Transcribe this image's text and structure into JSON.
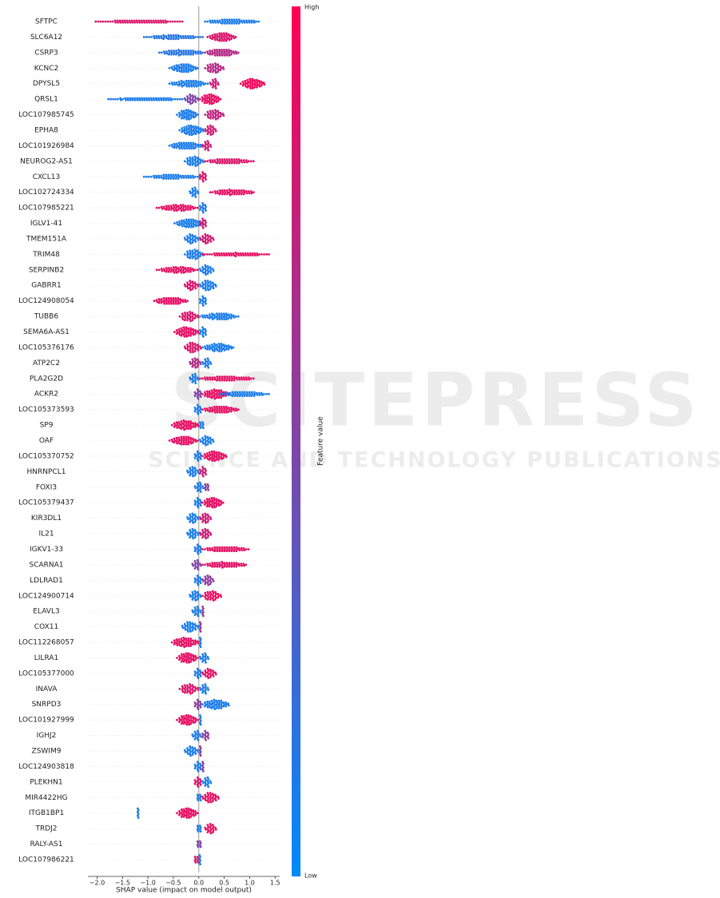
{
  "chart_data": {
    "type": "beeswarm",
    "xlabel": "SHAP value (impact on model output)",
    "xlim": [
      -2.18,
      1.59
    ],
    "xticks": [
      {
        "value": -2,
        "label": "−2.0"
      },
      {
        "value": -1.5,
        "label": "−1.5"
      },
      {
        "value": -1,
        "label": "−1.0"
      },
      {
        "value": -0.5,
        "label": "−0.5"
      },
      {
        "value": 0,
        "label": "0.0"
      },
      {
        "value": 0.5,
        "label": "0.5"
      },
      {
        "value": 1,
        "label": "1.0"
      },
      {
        "value": 1.5,
        "label": "1.5"
      }
    ],
    "colorbar": {
      "label": "Feature value",
      "high": "High",
      "low": "Low",
      "low_color": "#008afb",
      "high_color": "#ff0052"
    },
    "watermark": {
      "title": "SCITEPRESS",
      "subtitle": "SCIENCE AND TECHNOLOGY PUBLICATIONS"
    },
    "features": [
      {
        "name": "SFTPC",
        "clusters": [
          [
            -2.05,
            -0.3,
            0.85
          ],
          [
            0.1,
            1.2,
            0.1
          ]
        ]
      },
      {
        "name": "SLC6A12",
        "clusters": [
          [
            -1.1,
            0.1,
            0.15
          ],
          [
            0.15,
            0.75,
            0.85
          ]
        ]
      },
      {
        "name": "CSRP3",
        "clusters": [
          [
            -0.8,
            0.1,
            0.15
          ],
          [
            0.1,
            0.8,
            0.7
          ]
        ]
      },
      {
        "name": "KCNC2",
        "clusters": [
          [
            -0.6,
            0.0,
            0.1
          ],
          [
            0.1,
            0.5,
            0.7
          ]
        ]
      },
      {
        "name": "DPYSL5",
        "clusters": [
          [
            -0.6,
            0.2,
            0.1
          ],
          [
            0.2,
            0.4,
            0.8
          ],
          [
            0.8,
            1.3,
            0.95
          ]
        ]
      },
      {
        "name": "QRSL1",
        "clusters": [
          [
            -1.8,
            -0.3,
            0.1
          ],
          [
            -0.3,
            0.0,
            0.5
          ],
          [
            0.0,
            0.45,
            0.9
          ]
        ]
      },
      {
        "name": "LOC107985745",
        "clusters": [
          [
            -0.45,
            0.0,
            0.1
          ],
          [
            0.1,
            0.5,
            0.75
          ]
        ]
      },
      {
        "name": "EPHA8",
        "clusters": [
          [
            -0.4,
            0.1,
            0.1
          ],
          [
            0.1,
            0.35,
            0.8
          ]
        ]
      },
      {
        "name": "LOC101926984",
        "clusters": [
          [
            -0.6,
            0.1,
            0.1
          ],
          [
            0.05,
            0.25,
            0.8
          ]
        ]
      },
      {
        "name": "NEUROG2-AS1",
        "clusters": [
          [
            -0.3,
            0.1,
            0.1
          ],
          [
            0.1,
            1.1,
            0.85
          ]
        ]
      },
      {
        "name": "CXCL13",
        "clusters": [
          [
            -1.1,
            0.05,
            0.1
          ],
          [
            0.0,
            0.15,
            0.85
          ]
        ]
      },
      {
        "name": "LOC102724334",
        "clusters": [
          [
            -0.2,
            0.0,
            0.1
          ],
          [
            0.2,
            1.1,
            0.9
          ]
        ]
      },
      {
        "name": "LOC107985221",
        "clusters": [
          [
            -0.85,
            0.0,
            0.9
          ],
          [
            0.0,
            0.15,
            0.1
          ]
        ]
      },
      {
        "name": "IGLV1-41",
        "clusters": [
          [
            -0.5,
            0.1,
            0.1
          ],
          [
            0.0,
            0.15,
            0.8
          ]
        ]
      },
      {
        "name": "TMEM151A",
        "clusters": [
          [
            -0.3,
            0.0,
            0.1
          ],
          [
            0.0,
            0.3,
            0.8
          ]
        ]
      },
      {
        "name": "TRIM48",
        "clusters": [
          [
            -0.3,
            0.1,
            0.1
          ],
          [
            0.05,
            1.4,
            0.9
          ]
        ]
      },
      {
        "name": "SERPINB2",
        "clusters": [
          [
            -0.85,
            0.0,
            0.9
          ],
          [
            0.0,
            0.3,
            0.1
          ]
        ]
      },
      {
        "name": "GABRR1",
        "clusters": [
          [
            -0.3,
            0.0,
            0.85
          ],
          [
            0.0,
            0.35,
            0.1
          ]
        ]
      },
      {
        "name": "LOC124908054",
        "clusters": [
          [
            -0.9,
            -0.2,
            0.9
          ],
          [
            0.0,
            0.15,
            0.1
          ]
        ]
      },
      {
        "name": "TUBB6",
        "clusters": [
          [
            -0.4,
            0.0,
            0.85
          ],
          [
            0.0,
            0.8,
            0.1
          ]
        ]
      },
      {
        "name": "SEMA6A-AS1",
        "clusters": [
          [
            -0.5,
            0.0,
            0.9
          ],
          [
            0.0,
            0.15,
            0.1
          ]
        ]
      },
      {
        "name": "LOC105376176",
        "clusters": [
          [
            -0.3,
            0.05,
            0.85
          ],
          [
            0.05,
            0.7,
            0.1
          ]
        ]
      },
      {
        "name": "ATP2C2",
        "clusters": [
          [
            -0.2,
            0.05,
            0.7
          ],
          [
            0.05,
            0.25,
            0.1
          ]
        ]
      },
      {
        "name": "PLA2G2D",
        "clusters": [
          [
            -0.2,
            0.0,
            0.1
          ],
          [
            0.0,
            1.1,
            0.9
          ]
        ]
      },
      {
        "name": "ACKR2",
        "clusters": [
          [
            -0.1,
            0.05,
            0.5
          ],
          [
            0.05,
            0.6,
            0.9
          ],
          [
            0.4,
            1.4,
            0.1
          ]
        ]
      },
      {
        "name": "LOC105373593",
        "clusters": [
          [
            -0.1,
            0.05,
            0.1
          ],
          [
            0.05,
            0.8,
            0.9
          ]
        ]
      },
      {
        "name": "SP9",
        "clusters": [
          [
            -0.55,
            0.0,
            0.9
          ],
          [
            0.0,
            0.1,
            0.1
          ]
        ]
      },
      {
        "name": "OAF",
        "clusters": [
          [
            -0.6,
            0.0,
            0.9
          ],
          [
            0.0,
            0.3,
            0.1
          ]
        ]
      },
      {
        "name": "LOC105370752",
        "clusters": [
          [
            -0.1,
            0.05,
            0.1
          ],
          [
            0.05,
            0.55,
            0.9
          ]
        ]
      },
      {
        "name": "HNRNPCL1",
        "clusters": [
          [
            -0.25,
            0.0,
            0.1
          ],
          [
            0.0,
            0.15,
            0.8
          ]
        ]
      },
      {
        "name": "FOXI3",
        "clusters": [
          [
            -0.1,
            0.1,
            0.1
          ],
          [
            0.1,
            0.2,
            0.55
          ]
        ]
      },
      {
        "name": "LOC105379437",
        "clusters": [
          [
            -0.1,
            0.05,
            0.1
          ],
          [
            0.05,
            0.5,
            0.9
          ]
        ]
      },
      {
        "name": "KIR3DL1",
        "clusters": [
          [
            -0.25,
            0.0,
            0.1
          ],
          [
            0.0,
            0.25,
            0.8
          ]
        ]
      },
      {
        "name": "IL21",
        "clusters": [
          [
            -0.25,
            0.0,
            0.1
          ],
          [
            0.0,
            0.25,
            0.8
          ]
        ]
      },
      {
        "name": "IGKV1-33",
        "clusters": [
          [
            -0.1,
            0.05,
            0.1
          ],
          [
            0.05,
            1.0,
            0.9
          ]
        ]
      },
      {
        "name": "SCARNA1",
        "clusters": [
          [
            -0.15,
            0.05,
            0.5
          ],
          [
            0.05,
            0.95,
            0.9
          ]
        ]
      },
      {
        "name": "LDLRAD1",
        "clusters": [
          [
            -0.1,
            0.05,
            0.1
          ],
          [
            0.05,
            0.3,
            0.55
          ]
        ]
      },
      {
        "name": "LOC124900714",
        "clusters": [
          [
            -0.2,
            0.05,
            0.1
          ],
          [
            0.05,
            0.45,
            0.9
          ]
        ]
      },
      {
        "name": "ELAVL3",
        "clusters": [
          [
            -0.15,
            0.05,
            0.1
          ],
          [
            0.05,
            0.1,
            0.55
          ]
        ]
      },
      {
        "name": "COX11",
        "clusters": [
          [
            -0.35,
            0.0,
            0.1
          ],
          [
            0.0,
            0.05,
            0.55
          ]
        ]
      },
      {
        "name": "LOC112268057",
        "clusters": [
          [
            -0.55,
            0.0,
            0.9
          ],
          [
            0.0,
            0.05,
            0.1
          ]
        ]
      },
      {
        "name": "LILRA1",
        "clusters": [
          [
            -0.45,
            0.0,
            0.9
          ],
          [
            0.0,
            0.2,
            0.1
          ]
        ]
      },
      {
        "name": "LOC105377000",
        "clusters": [
          [
            -0.1,
            0.05,
            0.1
          ],
          [
            0.05,
            0.35,
            0.9
          ]
        ]
      },
      {
        "name": "INAVA",
        "clusters": [
          [
            -0.4,
            0.0,
            0.85
          ],
          [
            0.0,
            0.2,
            0.1
          ]
        ]
      },
      {
        "name": "SNRPD3",
        "clusters": [
          [
            -0.1,
            0.05,
            0.55
          ],
          [
            0.05,
            0.6,
            0.1
          ]
        ]
      },
      {
        "name": "LOC101927999",
        "clusters": [
          [
            -0.45,
            0.0,
            0.9
          ],
          [
            0.0,
            0.05,
            0.1
          ]
        ]
      },
      {
        "name": "IGHJ2",
        "clusters": [
          [
            -0.15,
            0.05,
            0.1
          ],
          [
            0.05,
            0.2,
            0.55
          ]
        ]
      },
      {
        "name": "ZSWIM9",
        "clusters": [
          [
            -0.3,
            0.0,
            0.1
          ],
          [
            0.0,
            0.05,
            0.55
          ]
        ]
      },
      {
        "name": "LOC124903818",
        "clusters": [
          [
            -0.1,
            0.05,
            0.1
          ],
          [
            0.05,
            0.1,
            0.55
          ]
        ]
      },
      {
        "name": "PLEKHN1",
        "clusters": [
          [
            -0.1,
            0.05,
            0.85
          ],
          [
            0.05,
            0.25,
            0.1
          ]
        ]
      },
      {
        "name": "MIR4422HG",
        "clusters": [
          [
            -0.05,
            0.05,
            0.1
          ],
          [
            0.05,
            0.4,
            0.9
          ]
        ]
      },
      {
        "name": "ITGB1BP1",
        "clusters": [
          [
            -1.22,
            -1.18,
            0.1
          ],
          [
            -0.45,
            0.0,
            0.9
          ]
        ]
      },
      {
        "name": "TRDJ2",
        "clusters": [
          [
            -0.05,
            0.05,
            0.1
          ],
          [
            0.1,
            0.35,
            0.9
          ]
        ]
      },
      {
        "name": "RALY-AS1",
        "clusters": [
          [
            -0.05,
            0.05,
            0.5
          ]
        ]
      },
      {
        "name": "LOC107986221",
        "clusters": [
          [
            -0.1,
            0.0,
            0.85
          ],
          [
            0.0,
            0.03,
            0.1
          ]
        ]
      }
    ]
  }
}
